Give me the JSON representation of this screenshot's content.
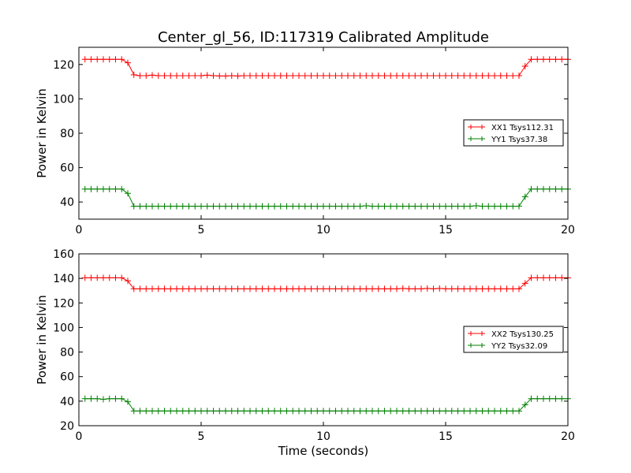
{
  "title": "Center_gl_56, ID:117319 Calibrated Amplitude",
  "xlabel": "Time (seconds)",
  "colors": {
    "red": "#ff0000",
    "green": "#008000"
  },
  "chart_data": [
    {
      "type": "line",
      "title": "Center_gl_56, ID:117319 Calibrated Amplitude",
      "xlabel": "",
      "ylabel": "Power in Kelvin",
      "xlim": [
        0,
        20
      ],
      "ylim": [
        30,
        130
      ],
      "xticks": [
        0,
        5,
        10,
        15,
        20
      ],
      "yticks": [
        40,
        60,
        80,
        100,
        120
      ],
      "grid": false,
      "legend_position": "center-right",
      "x": [
        0.25,
        0.5,
        0.75,
        1.0,
        1.25,
        1.5,
        1.75,
        2.0,
        2.25,
        2.5,
        2.75,
        3.0,
        3.25,
        3.5,
        3.75,
        4.0,
        4.25,
        4.5,
        4.75,
        5.0,
        5.25,
        5.5,
        5.75,
        6.0,
        6.25,
        6.5,
        6.75,
        7.0,
        7.25,
        7.5,
        7.75,
        8.0,
        8.25,
        8.5,
        8.75,
        9.0,
        9.25,
        9.5,
        9.75,
        10.0,
        10.25,
        10.5,
        10.75,
        11.0,
        11.25,
        11.5,
        11.75,
        12.0,
        12.25,
        12.5,
        12.75,
        13.0,
        13.25,
        13.5,
        13.75,
        14.0,
        14.25,
        14.5,
        14.75,
        15.0,
        15.25,
        15.5,
        15.75,
        16.0,
        16.25,
        16.5,
        16.75,
        17.0,
        17.25,
        17.5,
        17.75,
        18.0,
        18.25,
        18.5,
        18.75,
        19.0,
        19.25,
        19.5,
        19.75,
        20.0
      ],
      "series": [
        {
          "name": "XX1 Tsys112.31",
          "color": "#ff0000",
          "values": [
            123,
            123,
            123,
            123,
            123,
            123,
            123,
            121,
            114,
            113.5,
            113.5,
            113.8,
            113.5,
            113.5,
            113.5,
            113.5,
            113.5,
            113.5,
            113.5,
            113.5,
            113.8,
            113.5,
            113.3,
            113.3,
            113.5,
            113.3,
            113.5,
            113.5,
            113.5,
            113.5,
            113.5,
            113.5,
            113.5,
            113.5,
            113.5,
            113.5,
            113.5,
            113.5,
            113.5,
            113.5,
            113.5,
            113.5,
            113.5,
            113.5,
            113.5,
            113.5,
            113.5,
            113.5,
            113.5,
            113.5,
            113.5,
            113.5,
            113.5,
            113.5,
            113.5,
            113.5,
            113.5,
            113.5,
            113.5,
            113.5,
            113.5,
            113.5,
            113.5,
            113.5,
            113.5,
            113.5,
            113.5,
            113.5,
            113.5,
            113.5,
            113.5,
            113.5,
            119,
            123,
            123,
            123,
            123,
            123,
            123,
            123
          ]
        },
        {
          "name": "YY1 Tsys37.38",
          "color": "#008000",
          "values": [
            47.5,
            47.5,
            47.5,
            47.5,
            47.5,
            47.5,
            47.5,
            45,
            37.5,
            37.5,
            37.5,
            37.5,
            37.5,
            37.5,
            37.5,
            37.5,
            37.5,
            37.5,
            37.5,
            37.5,
            37.5,
            37.5,
            37.5,
            37.5,
            37.5,
            37.5,
            37.5,
            37.5,
            37.5,
            37.5,
            37.5,
            37.5,
            37.5,
            37.5,
            37.5,
            37.5,
            37.5,
            37.5,
            37.5,
            37.5,
            37.5,
            37.5,
            37.5,
            37.5,
            37.5,
            37.5,
            37.8,
            37.5,
            37.5,
            37.5,
            37.5,
            37.5,
            37.5,
            37.5,
            37.5,
            37.5,
            37.5,
            37.5,
            37.5,
            37.5,
            37.5,
            37.5,
            37.5,
            37.5,
            37.8,
            37.5,
            37.5,
            37.5,
            37.5,
            37.5,
            37.5,
            37.5,
            43,
            47.5,
            47.5,
            47.5,
            47.5,
            47.5,
            47.5,
            47.5
          ]
        }
      ]
    },
    {
      "type": "line",
      "title": "",
      "xlabel": "Time (seconds)",
      "ylabel": "Power in Kelvin",
      "xlim": [
        0,
        20
      ],
      "ylim": [
        20,
        160
      ],
      "xticks": [
        0,
        5,
        10,
        15,
        20
      ],
      "yticks": [
        20,
        40,
        60,
        80,
        100,
        120,
        140,
        160
      ],
      "grid": false,
      "legend_position": "center-right",
      "x": [
        0.25,
        0.5,
        0.75,
        1.0,
        1.25,
        1.5,
        1.75,
        2.0,
        2.25,
        2.5,
        2.75,
        3.0,
        3.25,
        3.5,
        3.75,
        4.0,
        4.25,
        4.5,
        4.75,
        5.0,
        5.25,
        5.5,
        5.75,
        6.0,
        6.25,
        6.5,
        6.75,
        7.0,
        7.25,
        7.5,
        7.75,
        8.0,
        8.25,
        8.5,
        8.75,
        9.0,
        9.25,
        9.5,
        9.75,
        10.0,
        10.25,
        10.5,
        10.75,
        11.0,
        11.25,
        11.5,
        11.75,
        12.0,
        12.25,
        12.5,
        12.75,
        13.0,
        13.25,
        13.5,
        13.75,
        14.0,
        14.25,
        14.5,
        14.75,
        15.0,
        15.25,
        15.5,
        15.75,
        16.0,
        16.25,
        16.5,
        16.75,
        17.0,
        17.25,
        17.5,
        17.75,
        18.0,
        18.25,
        18.5,
        18.75,
        19.0,
        19.25,
        19.5,
        19.75,
        20.0
      ],
      "series": [
        {
          "name": "XX2 Tsys130.25",
          "color": "#ff0000",
          "values": [
            140.5,
            140.5,
            140.5,
            140.5,
            140.5,
            140.5,
            140.5,
            138,
            131.5,
            131.5,
            131.5,
            131.5,
            131.5,
            131.5,
            131.5,
            131.5,
            131.5,
            131.5,
            131.5,
            131.5,
            131.5,
            131.5,
            131.5,
            131.5,
            131.5,
            131.5,
            131.5,
            131.5,
            131.5,
            131.5,
            131.5,
            131.5,
            131.5,
            131.5,
            131.5,
            131.5,
            131.5,
            131.5,
            131.5,
            131.5,
            131.5,
            131.5,
            131.5,
            131.5,
            131.5,
            131.5,
            131.5,
            131.5,
            131.5,
            131.5,
            131.5,
            131.5,
            131.8,
            131.5,
            131.5,
            131.5,
            131.8,
            131.5,
            131.8,
            131.5,
            131.5,
            131.5,
            131.5,
            131.5,
            131.5,
            131.5,
            131.5,
            131.5,
            131.5,
            131.5,
            131.5,
            131.5,
            136,
            140.5,
            140.5,
            140.5,
            140.5,
            140.5,
            140.5,
            140.5
          ]
        },
        {
          "name": "YY2 Tsys32.09",
          "color": "#008000",
          "values": [
            42,
            42,
            42,
            41.5,
            42,
            42,
            42,
            39.5,
            32,
            32,
            32,
            32,
            32,
            32,
            32,
            32,
            32,
            32,
            32,
            32,
            32,
            32,
            32,
            32,
            32,
            32,
            32,
            32,
            32,
            32,
            32,
            32,
            32,
            32,
            32,
            32,
            32,
            32,
            32,
            32,
            32,
            32,
            32,
            32,
            32,
            32,
            32,
            32,
            32,
            32,
            32,
            32,
            32,
            32,
            32,
            32,
            32,
            32,
            32,
            32,
            32,
            32,
            32,
            32,
            32,
            32,
            32,
            32,
            32,
            32,
            32,
            32,
            37,
            42,
            42,
            42,
            42,
            42,
            42,
            42
          ]
        }
      ]
    }
  ]
}
